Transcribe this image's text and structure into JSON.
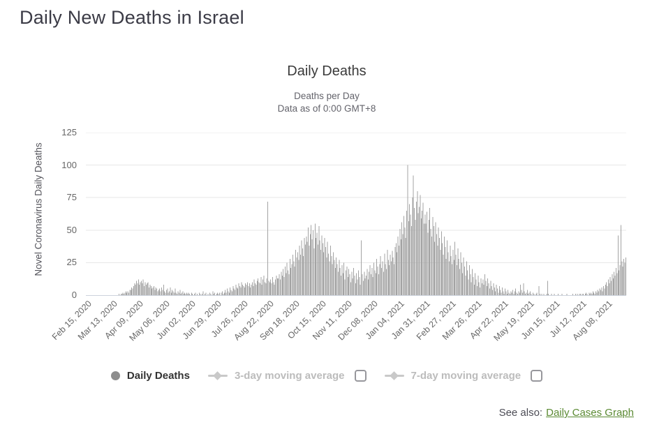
{
  "page": {
    "title": "Daily New Deaths in Israel",
    "see_also_label": "See also:",
    "see_also_link": "Daily Cases Graph"
  },
  "chart": {
    "title": "Daily Deaths",
    "subtitle_line1": "Deaths per Day",
    "subtitle_line2": "Data as of 0:00 GMT+8",
    "y_axis_title": "Novel Coronavirus Daily Deaths",
    "legend": {
      "series1": "Daily Deaths",
      "series2": "3-day moving average",
      "series3": "7-day moving average"
    }
  },
  "chart_data": {
    "type": "bar",
    "title": "Daily Deaths",
    "subtitle": [
      "Deaths per Day",
      "Data as of 0:00 GMT+8"
    ],
    "xlabel": "",
    "ylabel": "Novel Coronavirus Daily Deaths",
    "ylim": [
      0,
      125
    ],
    "yticks": [
      0,
      25,
      50,
      75,
      100,
      125
    ],
    "grid": "horizontal",
    "legend_position": "bottom",
    "legend": [
      "Daily Deaths",
      "3-day moving average",
      "7-day moving average"
    ],
    "legend_disabled": [
      false,
      true,
      true
    ],
    "bar_color": "#a3a3a3",
    "gridline_color": "#e7e7e7",
    "x_start_label": "Feb 15, 2020",
    "x_tick_labels": [
      "Feb 15, 2020",
      "Mar 13, 2020",
      "Apr 09, 2020",
      "May 06, 2020",
      "Jun 02, 2020",
      "Jun 29, 2020",
      "Jul 26, 2020",
      "Aug 22, 2020",
      "Sep 18, 2020",
      "Oct 15, 2020",
      "Nov 11, 2020",
      "Dec 08, 2020",
      "Jan 04, 2021",
      "Jan 31, 2021",
      "Feb 27, 2021",
      "Mar 26, 2021",
      "Apr 22, 2021",
      "May 19, 2021",
      "Jun 15, 2021",
      "Jul 12, 2021",
      "Aug 08, 2021"
    ],
    "x_tick_day_offsets": [
      0,
      27,
      54,
      81,
      108,
      135,
      162,
      189,
      216,
      243,
      270,
      297,
      324,
      351,
      378,
      405,
      432,
      459,
      486,
      513,
      540
    ],
    "total_days": 560,
    "values": [
      0,
      0,
      0,
      0,
      0,
      0,
      0,
      0,
      0,
      0,
      0,
      0,
      0,
      0,
      0,
      0,
      0,
      0,
      0,
      0,
      0,
      0,
      0,
      0,
      0,
      0,
      0,
      0,
      0,
      0,
      0,
      0,
      0,
      0,
      1,
      0,
      1,
      1,
      2,
      1,
      2,
      3,
      2,
      3,
      2,
      4,
      4,
      6,
      5,
      7,
      9,
      8,
      11,
      9,
      12,
      8,
      10,
      11,
      9,
      12,
      7,
      10,
      8,
      9,
      10,
      6,
      8,
      7,
      5,
      6,
      7,
      4,
      6,
      5,
      3,
      4,
      5,
      3,
      6,
      4,
      8,
      3,
      2,
      4,
      5,
      2,
      3,
      6,
      2,
      4,
      3,
      2,
      5,
      2,
      1,
      3,
      2,
      4,
      1,
      2,
      3,
      1,
      2,
      1,
      2,
      1,
      2,
      1,
      0,
      2,
      1,
      0,
      1,
      2,
      0,
      1,
      0,
      2,
      1,
      0,
      1,
      3,
      0,
      1,
      2,
      0,
      1,
      0,
      2,
      1,
      0,
      3,
      1,
      2,
      0,
      1,
      2,
      1,
      2,
      0,
      2,
      3,
      1,
      2,
      4,
      2,
      5,
      3,
      2,
      6,
      4,
      3,
      7,
      5,
      4,
      8,
      6,
      5,
      9,
      7,
      6,
      10,
      8,
      7,
      6,
      9,
      8,
      10,
      7,
      9,
      6,
      8,
      10,
      7,
      12,
      9,
      8,
      11,
      13,
      10,
      9,
      14,
      8,
      12,
      15,
      10,
      9,
      13,
      72,
      11,
      10,
      12,
      9,
      14,
      10,
      8,
      12,
      15,
      13,
      13,
      16,
      12,
      18,
      15,
      20,
      14,
      22,
      17,
      25,
      19,
      16,
      28,
      21,
      24,
      31,
      26,
      22,
      35,
      29,
      33,
      27,
      38,
      31,
      42,
      36,
      30,
      44,
      39,
      45,
      41,
      52,
      38,
      47,
      54,
      43,
      50,
      36,
      55,
      44,
      48,
      39,
      53,
      42,
      35,
      46,
      40,
      33,
      44,
      37,
      29,
      41,
      32,
      26,
      38,
      30,
      24,
      33,
      27,
      21,
      29,
      24,
      18,
      27,
      21,
      15,
      23,
      17,
      25,
      12,
      19,
      22,
      14,
      20,
      16,
      10,
      18,
      13,
      21,
      15,
      9,
      17,
      12,
      19,
      14,
      8,
      42,
      16,
      11,
      18,
      13,
      15,
      20,
      12,
      18,
      23,
      16,
      21,
      14,
      25,
      19,
      17,
      28,
      22,
      16,
      24,
      30,
      21,
      26,
      18,
      32,
      24,
      20,
      35,
      27,
      23,
      31,
      26,
      34,
      29,
      24,
      37,
      40,
      33,
      45,
      38,
      51,
      43,
      56,
      47,
      61,
      52,
      44,
      65,
      100,
      57,
      70,
      62,
      53,
      75,
      92,
      67,
      58,
      72,
      80,
      63,
      68,
      77,
      59,
      65,
      71,
      55,
      62,
      55,
      64,
      48,
      58,
      67,
      51,
      45,
      60,
      53,
      41,
      56,
      47,
      38,
      52,
      44,
      35,
      49,
      40,
      31,
      45,
      37,
      28,
      42,
      33,
      26,
      38,
      30,
      24,
      35,
      27,
      41,
      31,
      23,
      36,
      28,
      20,
      33,
      25,
      17,
      29,
      22,
      15,
      26,
      19,
      12,
      23,
      16,
      10,
      20,
      14,
      8,
      17,
      12,
      7,
      15,
      10,
      6,
      13,
      9,
      12,
      8,
      16,
      11,
      7,
      13,
      9,
      5,
      11,
      7,
      4,
      9,
      6,
      3,
      8,
      5,
      2,
      7,
      4,
      2,
      6,
      3,
      1,
      5,
      3,
      1,
      4,
      2,
      1,
      3,
      2,
      4,
      1,
      3,
      5,
      2,
      1,
      3,
      2,
      8,
      4,
      2,
      9,
      3,
      1,
      2,
      4,
      1,
      2,
      3,
      1,
      0,
      2,
      1,
      0,
      1,
      2,
      0,
      7,
      1,
      0,
      1,
      0,
      1,
      0,
      0,
      1,
      11,
      1,
      0,
      0,
      1,
      0,
      0,
      1,
      0,
      0,
      0,
      1,
      0,
      0,
      0,
      1,
      0,
      0,
      0,
      0,
      1,
      0,
      0,
      0,
      0,
      0,
      1,
      0,
      0,
      1,
      0,
      1,
      0,
      1,
      1,
      0,
      1,
      1,
      0,
      1,
      2,
      1,
      0,
      2,
      1,
      2,
      1,
      3,
      2,
      1,
      3,
      2,
      4,
      3,
      5,
      4,
      6,
      3,
      7,
      5,
      8,
      10,
      7,
      12,
      9,
      14,
      11,
      16,
      13,
      18,
      15,
      21,
      17,
      46,
      19,
      23,
      54,
      26,
      22,
      28,
      25,
      29
    ]
  }
}
